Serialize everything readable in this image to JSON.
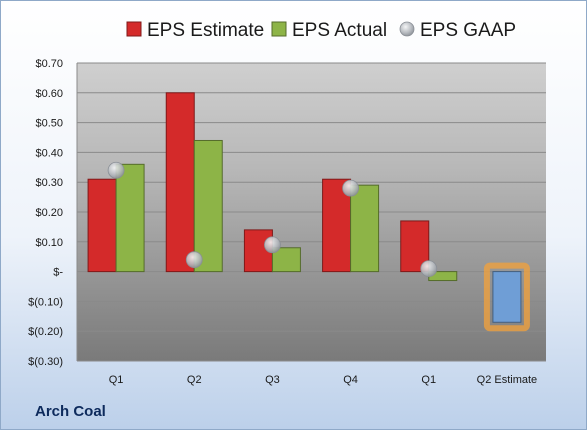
{
  "chart_data": {
    "type": "bar",
    "categories": [
      "Q1",
      "Q2",
      "Q3",
      "Q4",
      "Q1",
      "Q2 Estimate"
    ],
    "series": [
      {
        "name": "EPS Estimate",
        "color": "#d42a2a",
        "values": [
          0.31,
          0.6,
          0.14,
          0.31,
          0.17,
          null
        ]
      },
      {
        "name": "EPS Actual",
        "color": "#8db447",
        "values": [
          0.36,
          0.44,
          0.08,
          0.29,
          -0.03,
          null
        ]
      },
      {
        "name": "EPS GAAP",
        "color": "#b9bec4",
        "kind": "marker",
        "values": [
          0.34,
          0.04,
          0.09,
          0.28,
          0.01,
          null
        ]
      }
    ],
    "forecast": {
      "category": "Q2 Estimate",
      "value": -0.17,
      "color": "#6f9ed6",
      "highlight": "#f4a23a"
    },
    "y_ticks": [
      {
        "value": 0.7,
        "label": "$0.70"
      },
      {
        "value": 0.6,
        "label": "$0.60"
      },
      {
        "value": 0.5,
        "label": "$0.50"
      },
      {
        "value": 0.4,
        "label": "$0.40"
      },
      {
        "value": 0.3,
        "label": "$0.30"
      },
      {
        "value": 0.2,
        "label": "$0.20"
      },
      {
        "value": 0.1,
        "label": "$0.10"
      },
      {
        "value": 0.0,
        "label": "$-"
      },
      {
        "value": -0.1,
        "label": "$(0.10)"
      },
      {
        "value": -0.2,
        "label": "$(0.20)"
      },
      {
        "value": -0.3,
        "label": "$(0.30)"
      }
    ],
    "ylim": [
      -0.3,
      0.7
    ],
    "legend_position": "top",
    "grid": true
  },
  "footer": {
    "company": "Arch Coal"
  }
}
